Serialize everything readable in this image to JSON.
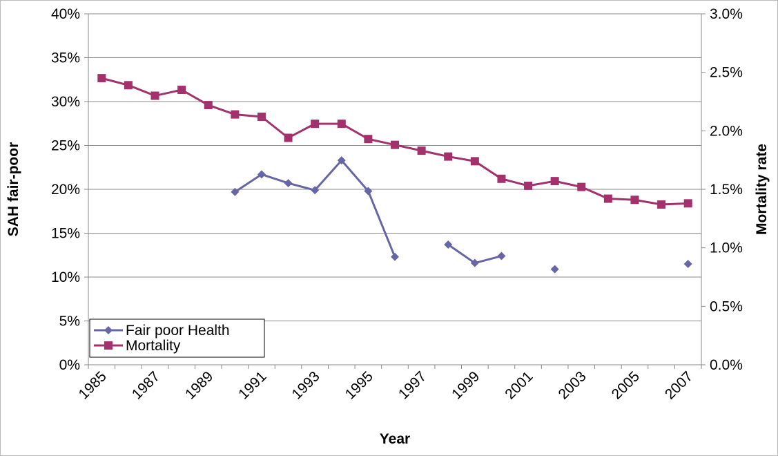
{
  "chart_data": {
    "type": "line",
    "x_label": "Year",
    "y_label": "SAH fair-poor",
    "y2_label": "Mortality rate",
    "categories": [
      "1985",
      null,
      "1987",
      null,
      "1989",
      null,
      "1991",
      null,
      "1993",
      null,
      "1995",
      null,
      "1997",
      null,
      "1999",
      null,
      "2001",
      null,
      "2003",
      null,
      "2005",
      null,
      "2007"
    ],
    "series": [
      {
        "name": "Fair poor Health",
        "color": "#6666a6",
        "marker": "diamond",
        "values": [
          null,
          null,
          null,
          null,
          null,
          19.7,
          21.7,
          20.7,
          19.9,
          23.3,
          19.8,
          12.3,
          null,
          13.7,
          11.6,
          12.4,
          null,
          10.9,
          null,
          null,
          null,
          null,
          11.5
        ]
      },
      {
        "name": "Mortality",
        "color": "#a3316c",
        "marker": "square",
        "axis": "y2",
        "values": [
          2.45,
          2.39,
          2.3,
          2.35,
          2.22,
          2.14,
          2.12,
          1.94,
          2.06,
          2.06,
          1.93,
          1.88,
          1.83,
          1.78,
          1.74,
          1.59,
          1.53,
          1.57,
          1.52,
          1.42,
          1.41,
          1.37,
          1.38
        ]
      }
    ],
    "ylim": [
      0,
      40
    ],
    "yticks": [
      {
        "value": 0,
        "label": "0%"
      },
      {
        "value": 5,
        "label": "5%"
      },
      {
        "value": 10,
        "label": "10%"
      },
      {
        "value": 15,
        "label": "15%"
      },
      {
        "value": 20,
        "label": "20%"
      },
      {
        "value": 25,
        "label": "25%"
      },
      {
        "value": 30,
        "label": "30%"
      },
      {
        "value": 35,
        "label": "35%"
      },
      {
        "value": 40,
        "label": "40%"
      }
    ],
    "y2lim": [
      0,
      3
    ],
    "y2ticks": [
      {
        "value": 0,
        "label": "0.0%"
      },
      {
        "value": 0.5,
        "label": "0.5%"
      },
      {
        "value": 1,
        "label": "1.0%"
      },
      {
        "value": 1.5,
        "label": "1.5%"
      },
      {
        "value": 2,
        "label": "2.0%"
      },
      {
        "value": 2.5,
        "label": "2.5%"
      },
      {
        "value": 3,
        "label": "3.0%"
      }
    ],
    "grid": true,
    "legend": "lower left"
  }
}
